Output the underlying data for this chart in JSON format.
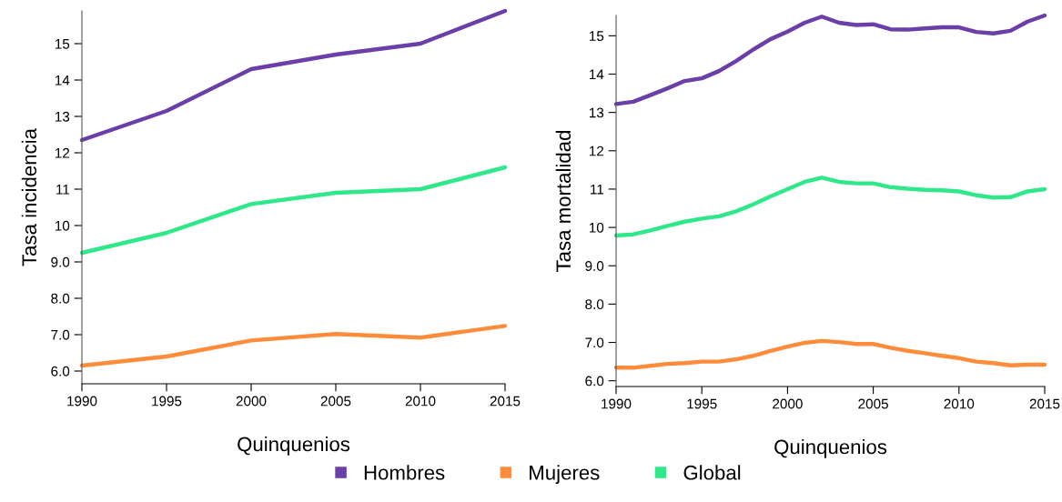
{
  "chart_data": [
    {
      "type": "line",
      "xlabel": "Quinquenios",
      "ylabel": "Tasa incidencia",
      "legend": "bottom",
      "grid": false,
      "marker": "none",
      "line_style": "solid",
      "xlim": [
        1990,
        2015
      ],
      "xticks": [
        1990,
        1995,
        2000,
        2005,
        2010,
        2015
      ],
      "ylim": [
        5.65,
        15.9
      ],
      "yticks": [
        {
          "value": 6,
          "label": "6.0"
        },
        {
          "value": 7,
          "label": "7.0"
        },
        {
          "value": 8,
          "label": "8.0"
        },
        {
          "value": 9,
          "label": "9.0"
        },
        10,
        11,
        12,
        13,
        14,
        15
      ],
      "x": [
        1990,
        1995,
        2000,
        2005,
        2010,
        2015
      ],
      "series": [
        {
          "name": "Hombres",
          "color": "#6a3fa8",
          "values": [
            12.35,
            13.15,
            14.3,
            14.7,
            15.0,
            15.9
          ]
        },
        {
          "name": "Mujeres",
          "color": "#ff8c3a",
          "values": [
            6.15,
            6.4,
            6.84,
            7.02,
            6.92,
            7.24
          ]
        },
        {
          "name": "Global",
          "color": "#2ee88a",
          "values": [
            9.25,
            9.8,
            10.59,
            10.9,
            11.0,
            11.6
          ]
        }
      ]
    },
    {
      "type": "line",
      "xlabel": "Quinquenios",
      "ylabel": "Tasa mortalidad",
      "legend": "bottom",
      "grid": false,
      "marker": "none",
      "line_style": "solid",
      "xlim": [
        1990,
        2015
      ],
      "xticks": [
        1990,
        1995,
        2000,
        2005,
        2010,
        2015
      ],
      "ylim": [
        5.85,
        15.53
      ],
      "yticks": [
        {
          "value": 6,
          "label": "6.0"
        },
        {
          "value": 7,
          "label": "7.0"
        },
        {
          "value": 8,
          "label": "8.0"
        },
        {
          "value": 9,
          "label": "9.0"
        },
        10,
        11,
        12,
        13,
        14,
        15
      ],
      "x": [
        1990,
        1991,
        1992,
        1993,
        1994,
        1995,
        1996,
        1997,
        1998,
        1999,
        2000,
        2001,
        2002,
        2003,
        2004,
        2005,
        2006,
        2007,
        2008,
        2009,
        2010,
        2011,
        2012,
        2013,
        2014,
        2015
      ],
      "series": [
        {
          "name": "Hombres",
          "color": "#6a3fa8",
          "values": [
            13.22,
            13.28,
            13.45,
            13.63,
            13.82,
            13.89,
            14.08,
            14.34,
            14.64,
            14.91,
            15.11,
            15.34,
            15.5,
            15.34,
            15.28,
            15.3,
            15.17,
            15.16,
            15.19,
            15.22,
            15.22,
            15.1,
            15.06,
            15.13,
            15.37,
            15.53
          ]
        },
        {
          "name": "Mujeres",
          "color": "#ff8c3a",
          "values": [
            6.34,
            6.34,
            6.39,
            6.44,
            6.46,
            6.5,
            6.5,
            6.56,
            6.65,
            6.78,
            6.89,
            6.99,
            7.04,
            7.01,
            6.96,
            6.96,
            6.86,
            6.78,
            6.72,
            6.65,
            6.59,
            6.5,
            6.46,
            6.4,
            6.42,
            6.42
          ]
        },
        {
          "name": "Global",
          "color": "#2ee88a",
          "values": [
            9.79,
            9.82,
            9.92,
            10.04,
            10.15,
            10.23,
            10.29,
            10.42,
            10.6,
            10.81,
            11.0,
            11.19,
            11.3,
            11.19,
            11.15,
            11.15,
            11.05,
            11.01,
            10.98,
            10.97,
            10.94,
            10.84,
            10.78,
            10.79,
            10.94,
            11.0
          ]
        }
      ]
    }
  ]
}
